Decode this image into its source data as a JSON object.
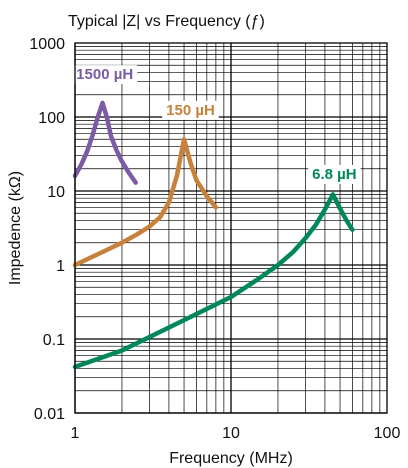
{
  "chart_data": {
    "type": "line",
    "title": "Typical |Z| vs Frequency (ƒ)",
    "xlabel": "Frequency (MHz)",
    "ylabel": "Impedence (kΩ)",
    "x_scale": "log",
    "y_scale": "log",
    "xlim": [
      1,
      100
    ],
    "ylim": [
      0.01,
      1000
    ],
    "x_ticks": [
      "1",
      "10",
      "100"
    ],
    "y_ticks": [
      "0.01",
      "0.1",
      "1",
      "10",
      "100",
      "1000"
    ],
    "grid": true,
    "series": [
      {
        "name": "1500 µH",
        "color": "#7b5aa6",
        "x": [
          1.0,
          1.1,
          1.2,
          1.3,
          1.4,
          1.5,
          1.6,
          1.7,
          1.85,
          2.0,
          2.2,
          2.45
        ],
        "y": [
          16,
          23,
          35,
          58,
          100,
          155,
          100,
          55,
          35,
          25,
          18,
          13
        ]
      },
      {
        "name": "150 µH",
        "color": "#c8813a",
        "x": [
          1.0,
          1.2,
          1.5,
          2.0,
          2.5,
          3.0,
          3.5,
          4.0,
          4.5,
          5.0,
          5.5,
          6.0,
          7.0,
          8.0
        ],
        "y": [
          1.0,
          1.2,
          1.5,
          2.0,
          2.6,
          3.3,
          4.4,
          7.0,
          16,
          50,
          24,
          14,
          8.5,
          6.0
        ]
      },
      {
        "name": "6.8 µH",
        "color": "#00875a",
        "x": [
          1.0,
          2.0,
          5.0,
          10.0,
          15.0,
          20.0,
          25.0,
          30.0,
          35.0,
          40.0,
          45.0,
          50.0,
          55.0,
          60.0
        ],
        "y": [
          0.042,
          0.07,
          0.18,
          0.37,
          0.65,
          1.0,
          1.5,
          2.3,
          3.5,
          5.6,
          9.0,
          5.8,
          4.0,
          3.0
        ]
      }
    ]
  }
}
